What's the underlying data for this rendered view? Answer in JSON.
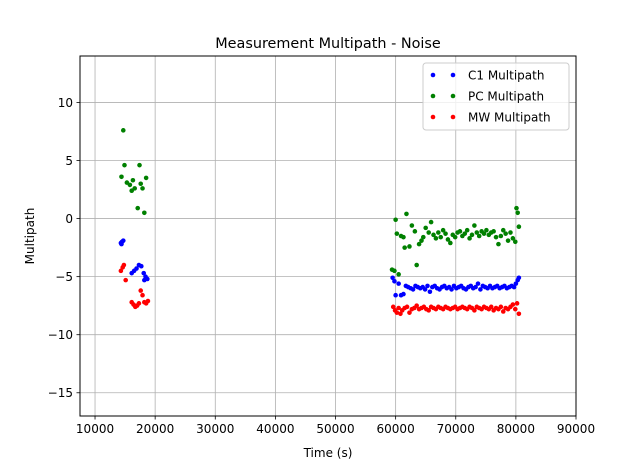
{
  "chart_data": {
    "type": "scatter",
    "title": "Measurement Multipath - Noise",
    "xlabel": "Time (s)",
    "ylabel": "Multipath",
    "xlim": [
      7500,
      90000
    ],
    "ylim": [
      -17,
      14
    ],
    "xticks": [
      10000,
      20000,
      30000,
      40000,
      50000,
      60000,
      70000,
      80000,
      90000
    ],
    "yticks": [
      -15,
      -10,
      -5,
      0,
      5,
      10
    ],
    "grid": true,
    "legend_position": "top-right",
    "series": [
      {
        "name": "C1 Multipath",
        "color": "#0000ff",
        "points": [
          [
            14300,
            -2.1
          ],
          [
            14500,
            -2.0
          ],
          [
            14700,
            -1.9
          ],
          [
            14400,
            -2.2
          ],
          [
            16100,
            -4.7
          ],
          [
            16500,
            -4.5
          ],
          [
            16900,
            -4.3
          ],
          [
            17300,
            -4.0
          ],
          [
            17700,
            -4.1
          ],
          [
            18100,
            -4.7
          ],
          [
            18400,
            -5.0
          ],
          [
            18700,
            -5.2
          ],
          [
            18200,
            -5.3
          ],
          [
            59500,
            -5.1
          ],
          [
            59800,
            -5.4
          ],
          [
            60000,
            -6.6
          ],
          [
            60500,
            -5.6
          ],
          [
            60900,
            -6.6
          ],
          [
            61300,
            -6.5
          ],
          [
            61700,
            -5.8
          ],
          [
            62100,
            -5.9
          ],
          [
            62500,
            -6.0
          ],
          [
            62900,
            -6.1
          ],
          [
            63300,
            -5.8
          ],
          [
            63700,
            -5.9
          ],
          [
            64100,
            -6.0
          ],
          [
            64500,
            -5.9
          ],
          [
            64900,
            -6.1
          ],
          [
            65300,
            -5.8
          ],
          [
            65700,
            -6.3
          ],
          [
            66100,
            -5.9
          ],
          [
            66500,
            -5.8
          ],
          [
            66900,
            -6.0
          ],
          [
            67300,
            -6.1
          ],
          [
            67700,
            -5.9
          ],
          [
            68100,
            -5.8
          ],
          [
            68500,
            -6.0
          ],
          [
            68900,
            -5.9
          ],
          [
            69300,
            -6.1
          ],
          [
            69700,
            -5.8
          ],
          [
            70100,
            -6.0
          ],
          [
            70500,
            -5.9
          ],
          [
            70900,
            -5.8
          ],
          [
            71300,
            -6.0
          ],
          [
            71700,
            -6.1
          ],
          [
            72100,
            -5.9
          ],
          [
            72500,
            -5.8
          ],
          [
            72900,
            -6.0
          ],
          [
            73300,
            -5.9
          ],
          [
            73700,
            -5.6
          ],
          [
            74100,
            -6.1
          ],
          [
            74500,
            -5.8
          ],
          [
            74900,
            -5.9
          ],
          [
            75300,
            -6.0
          ],
          [
            75700,
            -5.8
          ],
          [
            76100,
            -6.0
          ],
          [
            76500,
            -5.9
          ],
          [
            76900,
            -5.8
          ],
          [
            77300,
            -6.0
          ],
          [
            77700,
            -5.9
          ],
          [
            78100,
            -5.8
          ],
          [
            78500,
            -6.0
          ],
          [
            78900,
            -5.9
          ],
          [
            79300,
            -5.8
          ],
          [
            79700,
            -5.9
          ],
          [
            80000,
            -5.6
          ],
          [
            80300,
            -5.3
          ],
          [
            80500,
            -5.1
          ]
        ]
      },
      {
        "name": "PC Multipath",
        "color": "#008000",
        "points": [
          [
            14400,
            3.6
          ],
          [
            14700,
            7.6
          ],
          [
            14900,
            4.6
          ],
          [
            15300,
            3.1
          ],
          [
            15800,
            2.9
          ],
          [
            16100,
            2.4
          ],
          [
            16300,
            3.3
          ],
          [
            16600,
            2.6
          ],
          [
            17100,
            0.9
          ],
          [
            17400,
            4.6
          ],
          [
            17600,
            3.0
          ],
          [
            17900,
            2.6
          ],
          [
            18200,
            0.5
          ],
          [
            18500,
            3.5
          ],
          [
            59400,
            -4.4
          ],
          [
            59800,
            -4.5
          ],
          [
            60000,
            -0.1
          ],
          [
            60200,
            -1.3
          ],
          [
            60500,
            -4.8
          ],
          [
            60900,
            -1.5
          ],
          [
            61300,
            -1.6
          ],
          [
            61500,
            -2.5
          ],
          [
            61800,
            0.4
          ],
          [
            62300,
            -2.4
          ],
          [
            62700,
            -0.6
          ],
          [
            63200,
            -1.1
          ],
          [
            63500,
            -4.0
          ],
          [
            63900,
            -2.2
          ],
          [
            64300,
            -1.9
          ],
          [
            64600,
            -1.6
          ],
          [
            65000,
            -0.8
          ],
          [
            65500,
            -1.2
          ],
          [
            65900,
            -0.3
          ],
          [
            66300,
            -1.4
          ],
          [
            66700,
            -1.7
          ],
          [
            67100,
            -1.2
          ],
          [
            67500,
            -1.6
          ],
          [
            67900,
            -1.0
          ],
          [
            68300,
            -1.3
          ],
          [
            68700,
            -1.8
          ],
          [
            69100,
            -2.1
          ],
          [
            69500,
            -1.4
          ],
          [
            69900,
            -1.6
          ],
          [
            70300,
            -1.2
          ],
          [
            70700,
            -1.1
          ],
          [
            71100,
            -1.5
          ],
          [
            71500,
            -1.3
          ],
          [
            71900,
            -1.0
          ],
          [
            72300,
            -1.7
          ],
          [
            72700,
            -1.4
          ],
          [
            73100,
            -0.6
          ],
          [
            73500,
            -1.2
          ],
          [
            73900,
            -1.5
          ],
          [
            74300,
            -1.1
          ],
          [
            74700,
            -1.3
          ],
          [
            75100,
            -1.0
          ],
          [
            75500,
            -1.4
          ],
          [
            75900,
            -1.2
          ],
          [
            76300,
            -1.1
          ],
          [
            76700,
            -1.6
          ],
          [
            77100,
            -2.2
          ],
          [
            77500,
            -1.5
          ],
          [
            77900,
            -1.0
          ],
          [
            78300,
            -1.3
          ],
          [
            78700,
            -1.9
          ],
          [
            79100,
            -1.2
          ],
          [
            79500,
            -1.7
          ],
          [
            79900,
            -2.0
          ],
          [
            80100,
            0.9
          ],
          [
            80300,
            0.5
          ],
          [
            80500,
            -0.7
          ]
        ]
      },
      {
        "name": "MW Multipath",
        "color": "#ff0000",
        "points": [
          [
            14300,
            -4.5
          ],
          [
            14600,
            -4.2
          ],
          [
            14800,
            -4.0
          ],
          [
            15100,
            -5.3
          ],
          [
            16100,
            -7.2
          ],
          [
            16400,
            -7.4
          ],
          [
            16700,
            -7.6
          ],
          [
            17000,
            -7.5
          ],
          [
            17300,
            -7.3
          ],
          [
            17600,
            -6.2
          ],
          [
            17900,
            -6.6
          ],
          [
            18200,
            -7.2
          ],
          [
            18500,
            -7.3
          ],
          [
            18800,
            -7.1
          ],
          [
            59600,
            -7.6
          ],
          [
            59900,
            -7.9
          ],
          [
            60200,
            -8.1
          ],
          [
            60500,
            -7.7
          ],
          [
            60800,
            -8.2
          ],
          [
            61100,
            -7.9
          ],
          [
            61500,
            -7.7
          ],
          [
            61900,
            -7.6
          ],
          [
            62300,
            -8.1
          ],
          [
            62700,
            -7.8
          ],
          [
            63100,
            -7.7
          ],
          [
            63500,
            -7.5
          ],
          [
            63900,
            -7.8
          ],
          [
            64300,
            -7.7
          ],
          [
            64700,
            -7.6
          ],
          [
            65100,
            -7.8
          ],
          [
            65500,
            -7.9
          ],
          [
            65900,
            -7.6
          ],
          [
            66300,
            -7.7
          ],
          [
            66700,
            -7.8
          ],
          [
            67100,
            -7.6
          ],
          [
            67500,
            -7.7
          ],
          [
            67900,
            -7.8
          ],
          [
            68300,
            -7.6
          ],
          [
            68700,
            -7.7
          ],
          [
            69100,
            -7.8
          ],
          [
            69500,
            -7.7
          ],
          [
            69900,
            -7.6
          ],
          [
            70300,
            -7.8
          ],
          [
            70700,
            -7.7
          ],
          [
            71100,
            -7.6
          ],
          [
            71500,
            -7.7
          ],
          [
            71900,
            -7.8
          ],
          [
            72300,
            -7.6
          ],
          [
            72700,
            -7.7
          ],
          [
            73100,
            -7.9
          ],
          [
            73500,
            -7.6
          ],
          [
            73900,
            -7.7
          ],
          [
            74300,
            -7.8
          ],
          [
            74700,
            -7.6
          ],
          [
            75100,
            -7.7
          ],
          [
            75500,
            -7.8
          ],
          [
            75900,
            -7.6
          ],
          [
            76300,
            -7.9
          ],
          [
            76700,
            -7.7
          ],
          [
            77100,
            -7.8
          ],
          [
            77500,
            -7.6
          ],
          [
            77900,
            -8.0
          ],
          [
            78300,
            -7.7
          ],
          [
            78700,
            -7.8
          ],
          [
            79100,
            -7.6
          ],
          [
            79500,
            -7.4
          ],
          [
            79900,
            -7.8
          ],
          [
            80200,
            -7.3
          ],
          [
            80500,
            -8.2
          ]
        ]
      }
    ]
  }
}
